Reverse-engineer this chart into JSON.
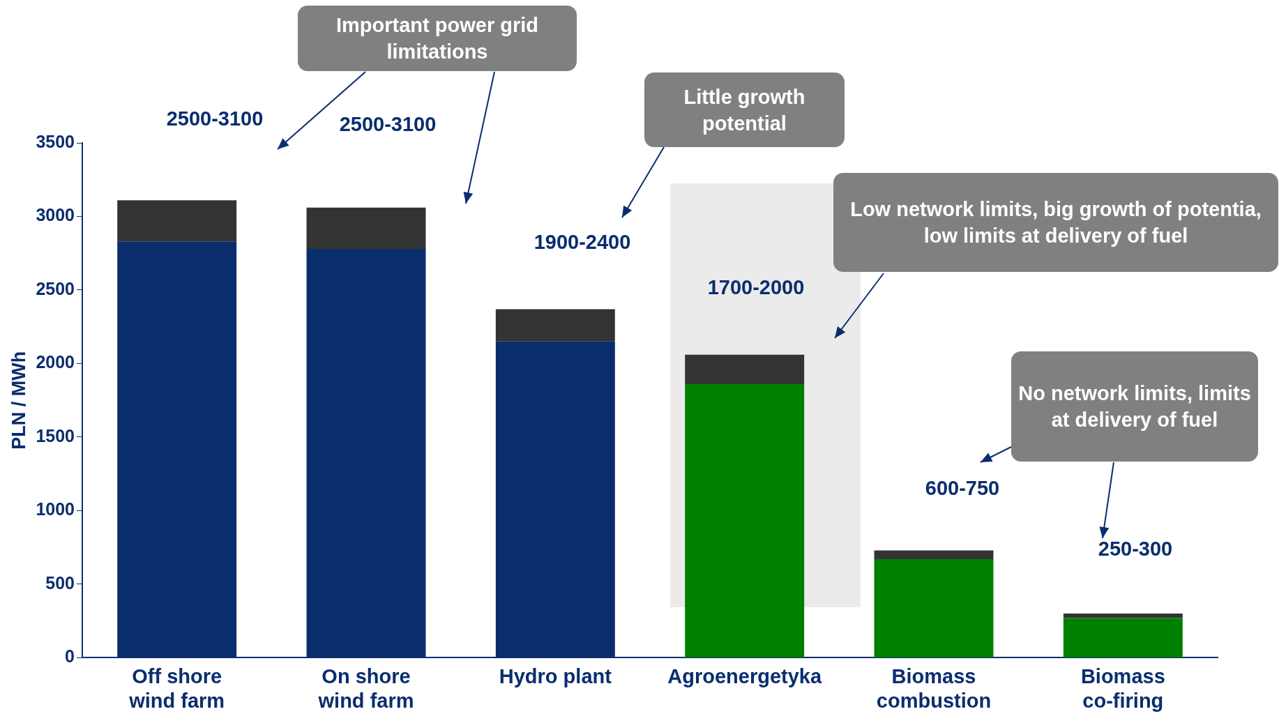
{
  "chart_data": {
    "type": "bar",
    "stacked": true,
    "categories": [
      "Off shore wind farm",
      "On shore wind farm",
      "Hydro plant",
      "Agroenergetyka",
      "Biomass combustion",
      "Biomass co-firing"
    ],
    "series": [
      {
        "colors": [
          "#0a2d6e",
          "#0a2d6e",
          "#0a2d6e",
          "#008000",
          "#008000",
          "#008000"
        ],
        "values": [
          2830,
          2780,
          2150,
          1860,
          670,
          270
        ]
      },
      {
        "color": "#333333",
        "values": [
          280,
          280,
          220,
          200,
          60,
          30
        ]
      }
    ],
    "ylabel": "PLN / MWh",
    "ylim": [
      0,
      3500
    ],
    "yticks": [
      0,
      500,
      1000,
      1500,
      2000,
      2500,
      3000,
      3500
    ],
    "grid": false,
    "legend": false,
    "annotations": [
      "Important power grid limitations",
      "Little growth potential",
      "Low network limits, big growth of potentia, low limits at delivery of fuel",
      "No network limits, limits at delivery of fuel",
      "2500-3100",
      "2500-3100",
      "1900-2400",
      "1700-2000",
      "600-750",
      "250-300"
    ]
  }
}
